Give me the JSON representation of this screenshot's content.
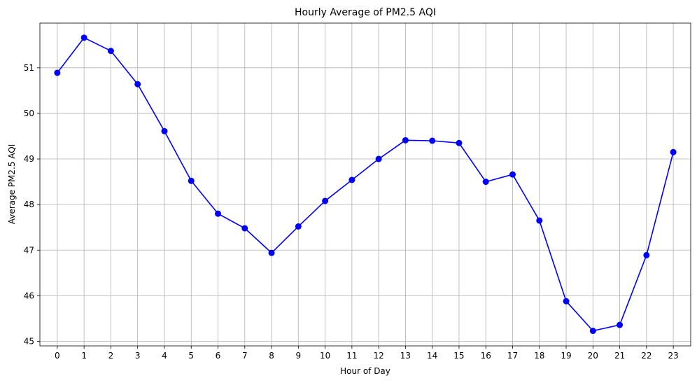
{
  "chart_data": {
    "type": "line",
    "title": "Hourly Average of PM2.5 AQI",
    "xlabel": "Hour of Day",
    "ylabel": "Average PM2.5 AQI",
    "x": [
      0,
      1,
      2,
      3,
      4,
      5,
      6,
      7,
      8,
      9,
      10,
      11,
      12,
      13,
      14,
      15,
      16,
      17,
      18,
      19,
      20,
      21,
      22,
      23
    ],
    "xtick_labels": [
      "0",
      "1",
      "2",
      "3",
      "4",
      "5",
      "6",
      "7",
      "8",
      "9",
      "10",
      "11",
      "12",
      "13",
      "14",
      "15",
      "16",
      "17",
      "18",
      "19",
      "20",
      "21",
      "22",
      "23"
    ],
    "series": [
      {
        "values": [
          50.89,
          51.66,
          51.37,
          50.64,
          49.61,
          48.52,
          47.8,
          47.48,
          46.94,
          47.52,
          48.08,
          48.54,
          49.0,
          49.41,
          49.4,
          49.35,
          48.5,
          48.66,
          47.65,
          45.88,
          45.23,
          45.36,
          46.89,
          49.15
        ],
        "color": "#0000ff",
        "marker": "circle"
      }
    ],
    "yticks": [
      45,
      46,
      47,
      48,
      49,
      50,
      51
    ],
    "ytick_labels": [
      "45",
      "46",
      "47",
      "48",
      "49",
      "50",
      "51"
    ],
    "xlim": [
      -0.65,
      23.65
    ],
    "ylim": [
      44.9,
      51.98
    ],
    "grid": true
  }
}
